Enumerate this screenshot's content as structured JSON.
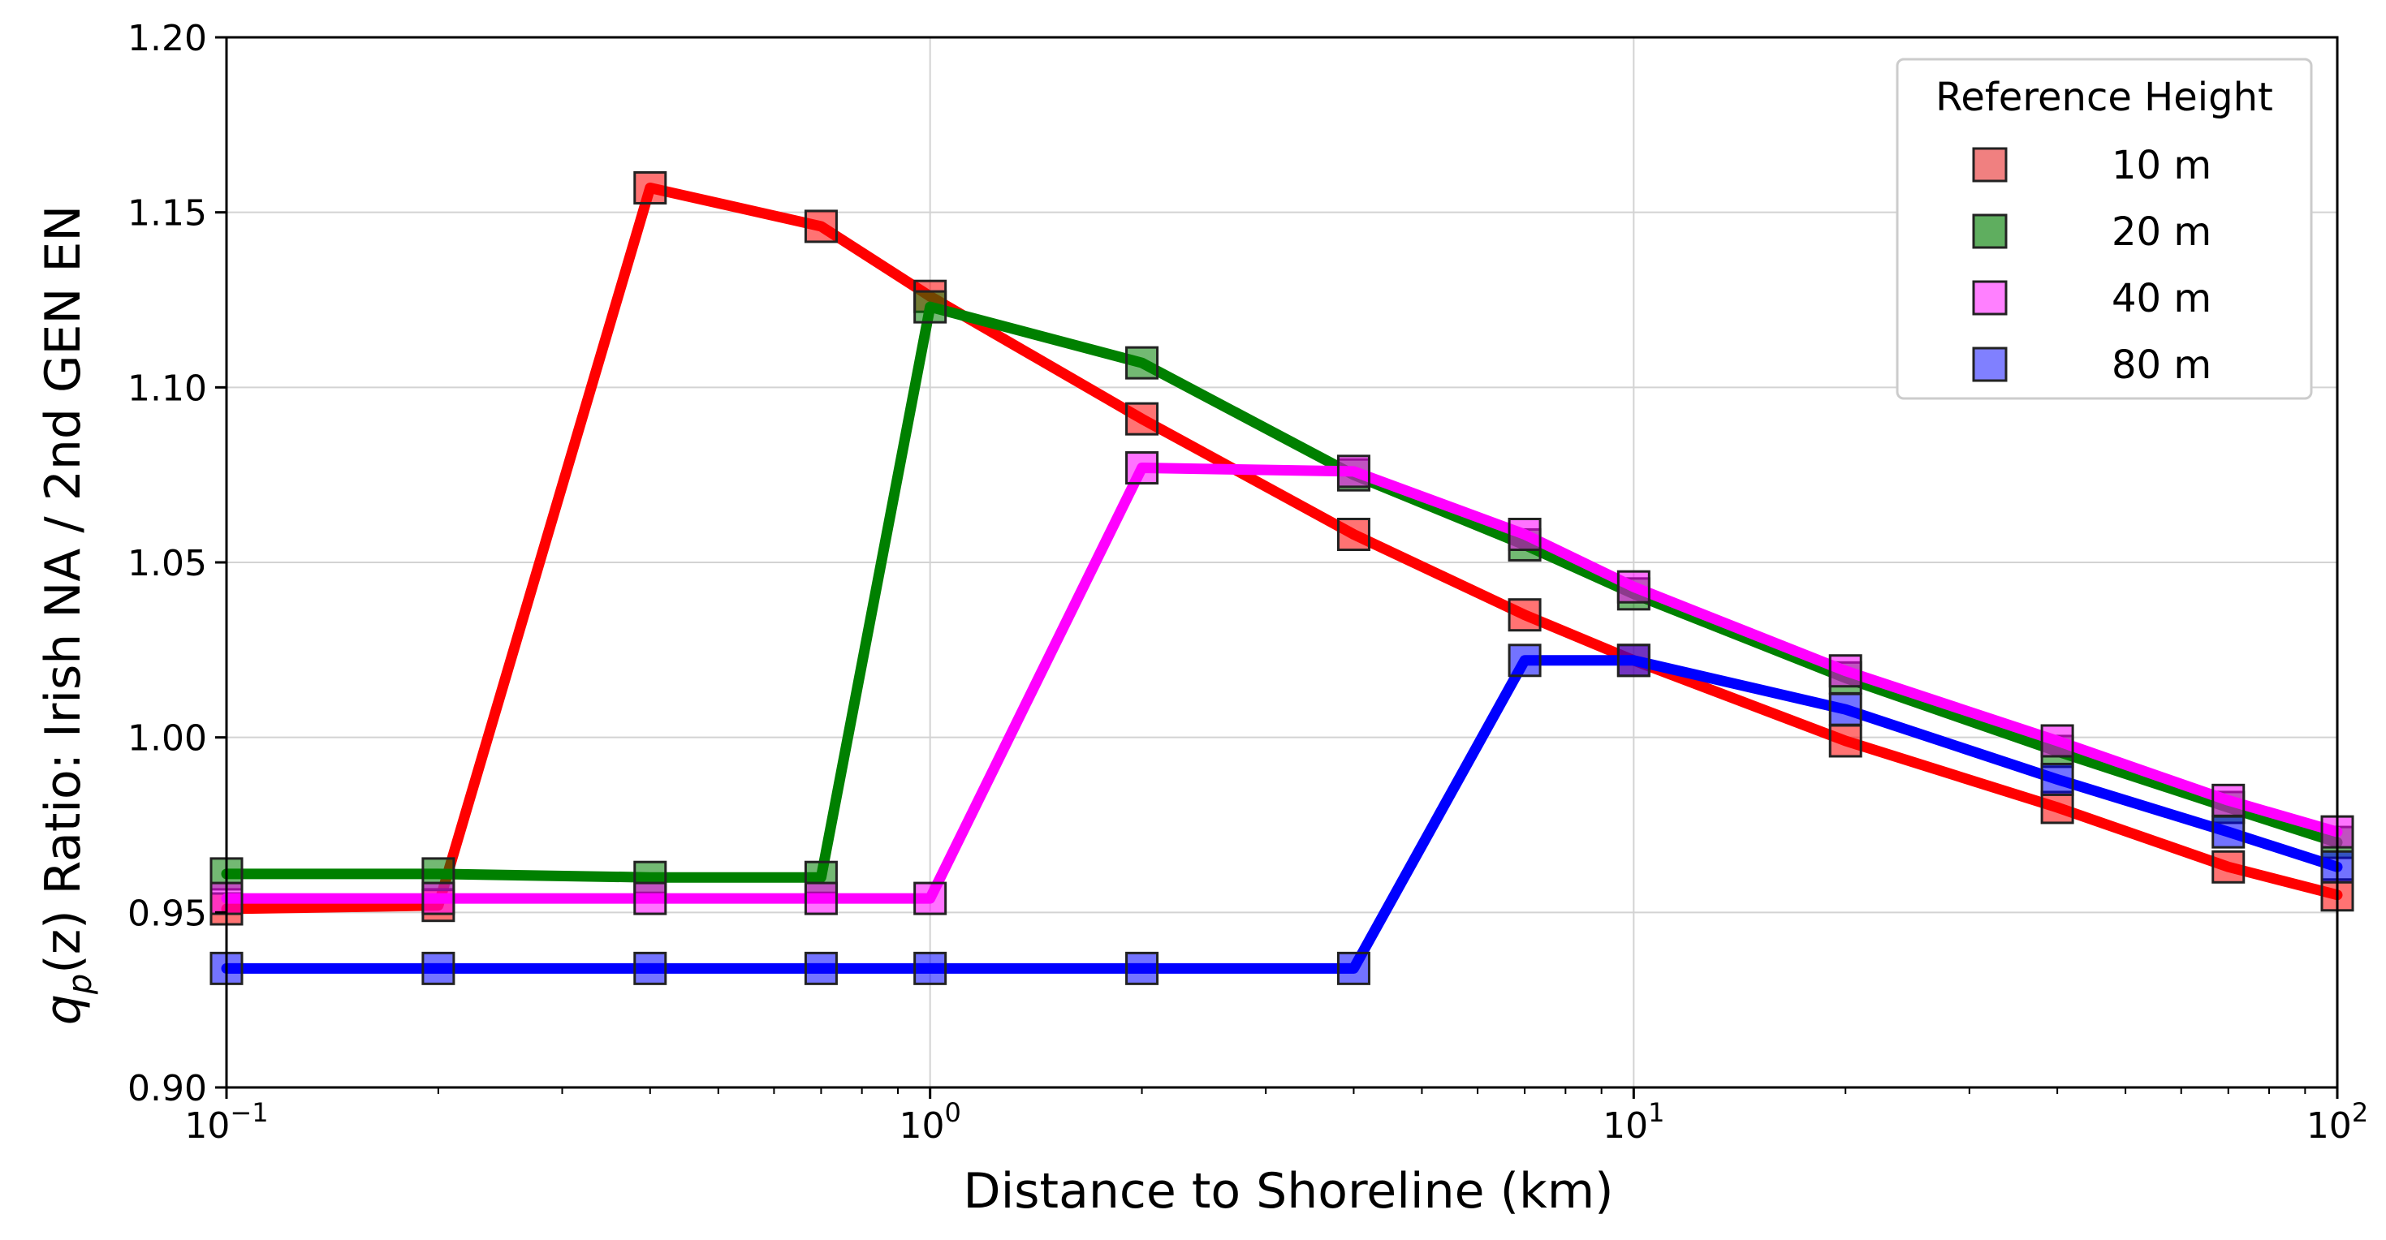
{
  "chart_data": {
    "type": "line",
    "xlabel": "Distance to Shoreline (km)",
    "ylabel_parts": {
      "q": "q",
      "sub": "p",
      "rest": "(z) Ratio: Irish NA / 2nd GEN EN"
    },
    "x_scale": "log",
    "xlim": [
      0.1,
      100
    ],
    "ylim": [
      0.9,
      1.2
    ],
    "x_ticks": [
      {
        "value": 0.1,
        "base": "10",
        "exp": "−1"
      },
      {
        "value": 1,
        "base": "10",
        "exp": "0"
      },
      {
        "value": 10,
        "base": "10",
        "exp": "1"
      },
      {
        "value": 100,
        "base": "10",
        "exp": "2"
      }
    ],
    "y_ticks": [
      "0.90",
      "0.95",
      "1.00",
      "1.05",
      "1.10",
      "1.15",
      "1.20"
    ],
    "grid": true,
    "legend": {
      "title": "Reference Height",
      "placement": "top-right"
    },
    "series": [
      {
        "name": "10 m",
        "color": "#ff0000",
        "legend_fill": "#f08080",
        "points": [
          [
            0.1,
            0.951
          ],
          [
            0.2,
            0.952
          ],
          [
            0.4,
            1.157
          ],
          [
            0.7,
            1.146
          ],
          [
            1.0,
            1.126
          ],
          [
            2.0,
            1.091
          ],
          [
            4.0,
            1.058
          ],
          [
            7.0,
            1.035
          ],
          [
            10.0,
            1.022
          ],
          [
            20.0,
            0.999
          ],
          [
            40.0,
            0.98
          ],
          [
            70.0,
            0.963
          ],
          [
            100.0,
            0.955
          ]
        ]
      },
      {
        "name": "20 m",
        "color": "#008000",
        "legend_fill": "#5fae5f",
        "points": [
          [
            0.1,
            0.961
          ],
          [
            0.2,
            0.961
          ],
          [
            0.4,
            0.96
          ],
          [
            0.7,
            0.96
          ],
          [
            1.0,
            1.123
          ],
          [
            2.0,
            1.107
          ],
          [
            4.0,
            1.075
          ],
          [
            7.0,
            1.055
          ],
          [
            10.0,
            1.041
          ],
          [
            20.0,
            1.017
          ],
          [
            40.0,
            0.996
          ],
          [
            70.0,
            0.98
          ],
          [
            100.0,
            0.97
          ]
        ]
      },
      {
        "name": "40 m",
        "color": "#ff00ff",
        "legend_fill": "#ff80ff",
        "points": [
          [
            0.1,
            0.954
          ],
          [
            0.2,
            0.954
          ],
          [
            0.4,
            0.954
          ],
          [
            0.7,
            0.954
          ],
          [
            1.0,
            0.954
          ],
          [
            2.0,
            1.077
          ],
          [
            4.0,
            1.076
          ],
          [
            7.0,
            1.058
          ],
          [
            10.0,
            1.043
          ],
          [
            20.0,
            1.019
          ],
          [
            40.0,
            0.999
          ],
          [
            70.0,
            0.982
          ],
          [
            100.0,
            0.973
          ]
        ]
      },
      {
        "name": "80 m",
        "color": "#0000ff",
        "legend_fill": "#8080ff",
        "points": [
          [
            0.1,
            0.934
          ],
          [
            0.2,
            0.934
          ],
          [
            0.4,
            0.934
          ],
          [
            0.7,
            0.934
          ],
          [
            1.0,
            0.934
          ],
          [
            2.0,
            0.934
          ],
          [
            4.0,
            0.934
          ],
          [
            7.0,
            1.022
          ],
          [
            10.0,
            1.022
          ],
          [
            20.0,
            1.008
          ],
          [
            40.0,
            0.988
          ],
          [
            70.0,
            0.973
          ],
          [
            100.0,
            0.963
          ]
        ]
      }
    ]
  }
}
